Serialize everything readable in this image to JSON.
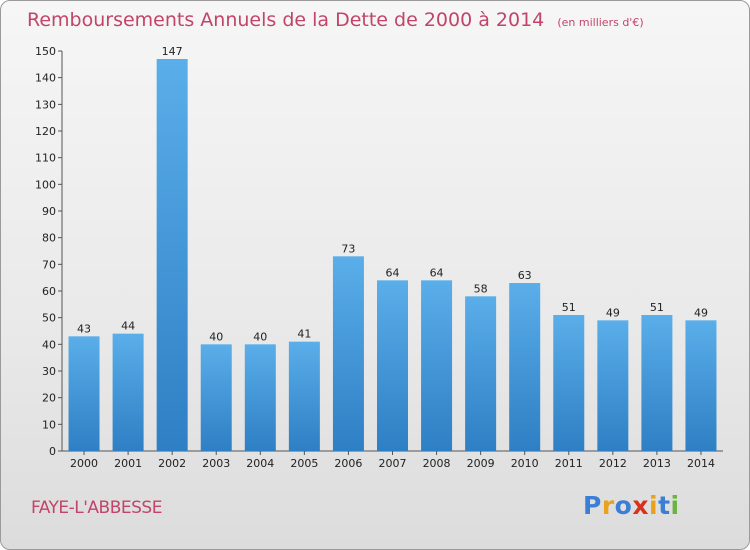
{
  "title": "Remboursements Annuels de la Dette de 2000 à 2014",
  "unit_note": "(en milliers d'€)",
  "commune": "FAYE-L'ABBESSE",
  "logo": {
    "text": "Proxiti",
    "colors": [
      "#3a7fd5",
      "#e8a21c",
      "#3a7fd5",
      "#d8321e",
      "#e8a21c",
      "#3a7fd5",
      "#6db33f"
    ]
  },
  "colors": {
    "bar_top": "#5aaee9",
    "bar_bottom": "#2e7fc4",
    "title": "#c2446a"
  },
  "chart_data": {
    "type": "bar",
    "categories": [
      "2000",
      "2001",
      "2002",
      "2003",
      "2004",
      "2005",
      "2006",
      "2007",
      "2008",
      "2009",
      "2010",
      "2011",
      "2012",
      "2013",
      "2014"
    ],
    "values": [
      43,
      44,
      147,
      40,
      40,
      41,
      73,
      64,
      64,
      58,
      63,
      51,
      49,
      51,
      49
    ],
    "ylim": [
      0,
      150
    ],
    "yticks": [
      0,
      10,
      20,
      30,
      40,
      50,
      60,
      70,
      80,
      90,
      100,
      110,
      120,
      130,
      140,
      150
    ],
    "grid": false,
    "data_labels": true
  }
}
